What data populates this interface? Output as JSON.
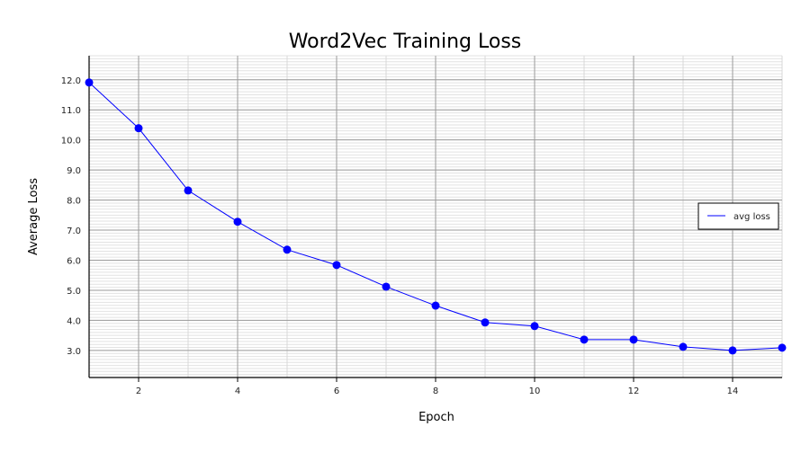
{
  "chart_data": {
    "type": "line",
    "title": "Word2Vec Training Loss",
    "xlabel": "Epoch",
    "ylabel": "Average Loss",
    "xlim": [
      1,
      15
    ],
    "ylim": [
      2.1,
      12.8
    ],
    "xticks": [
      2,
      4,
      6,
      8,
      10,
      12,
      14
    ],
    "yticks": [
      3.0,
      4.0,
      5.0,
      6.0,
      7.0,
      8.0,
      9.0,
      10.0,
      11.0,
      12.0
    ],
    "grid": true,
    "legend_position": "right",
    "series": [
      {
        "name": "avg loss",
        "color": "#0000ff",
        "x": [
          1,
          2,
          3,
          4,
          5,
          6,
          7,
          8,
          9,
          10,
          11,
          12,
          13,
          14,
          15
        ],
        "values": [
          11.91,
          10.39,
          8.32,
          7.28,
          6.35,
          5.84,
          5.12,
          4.49,
          3.93,
          3.81,
          3.36,
          3.36,
          3.12,
          3.0,
          3.09
        ]
      }
    ]
  }
}
